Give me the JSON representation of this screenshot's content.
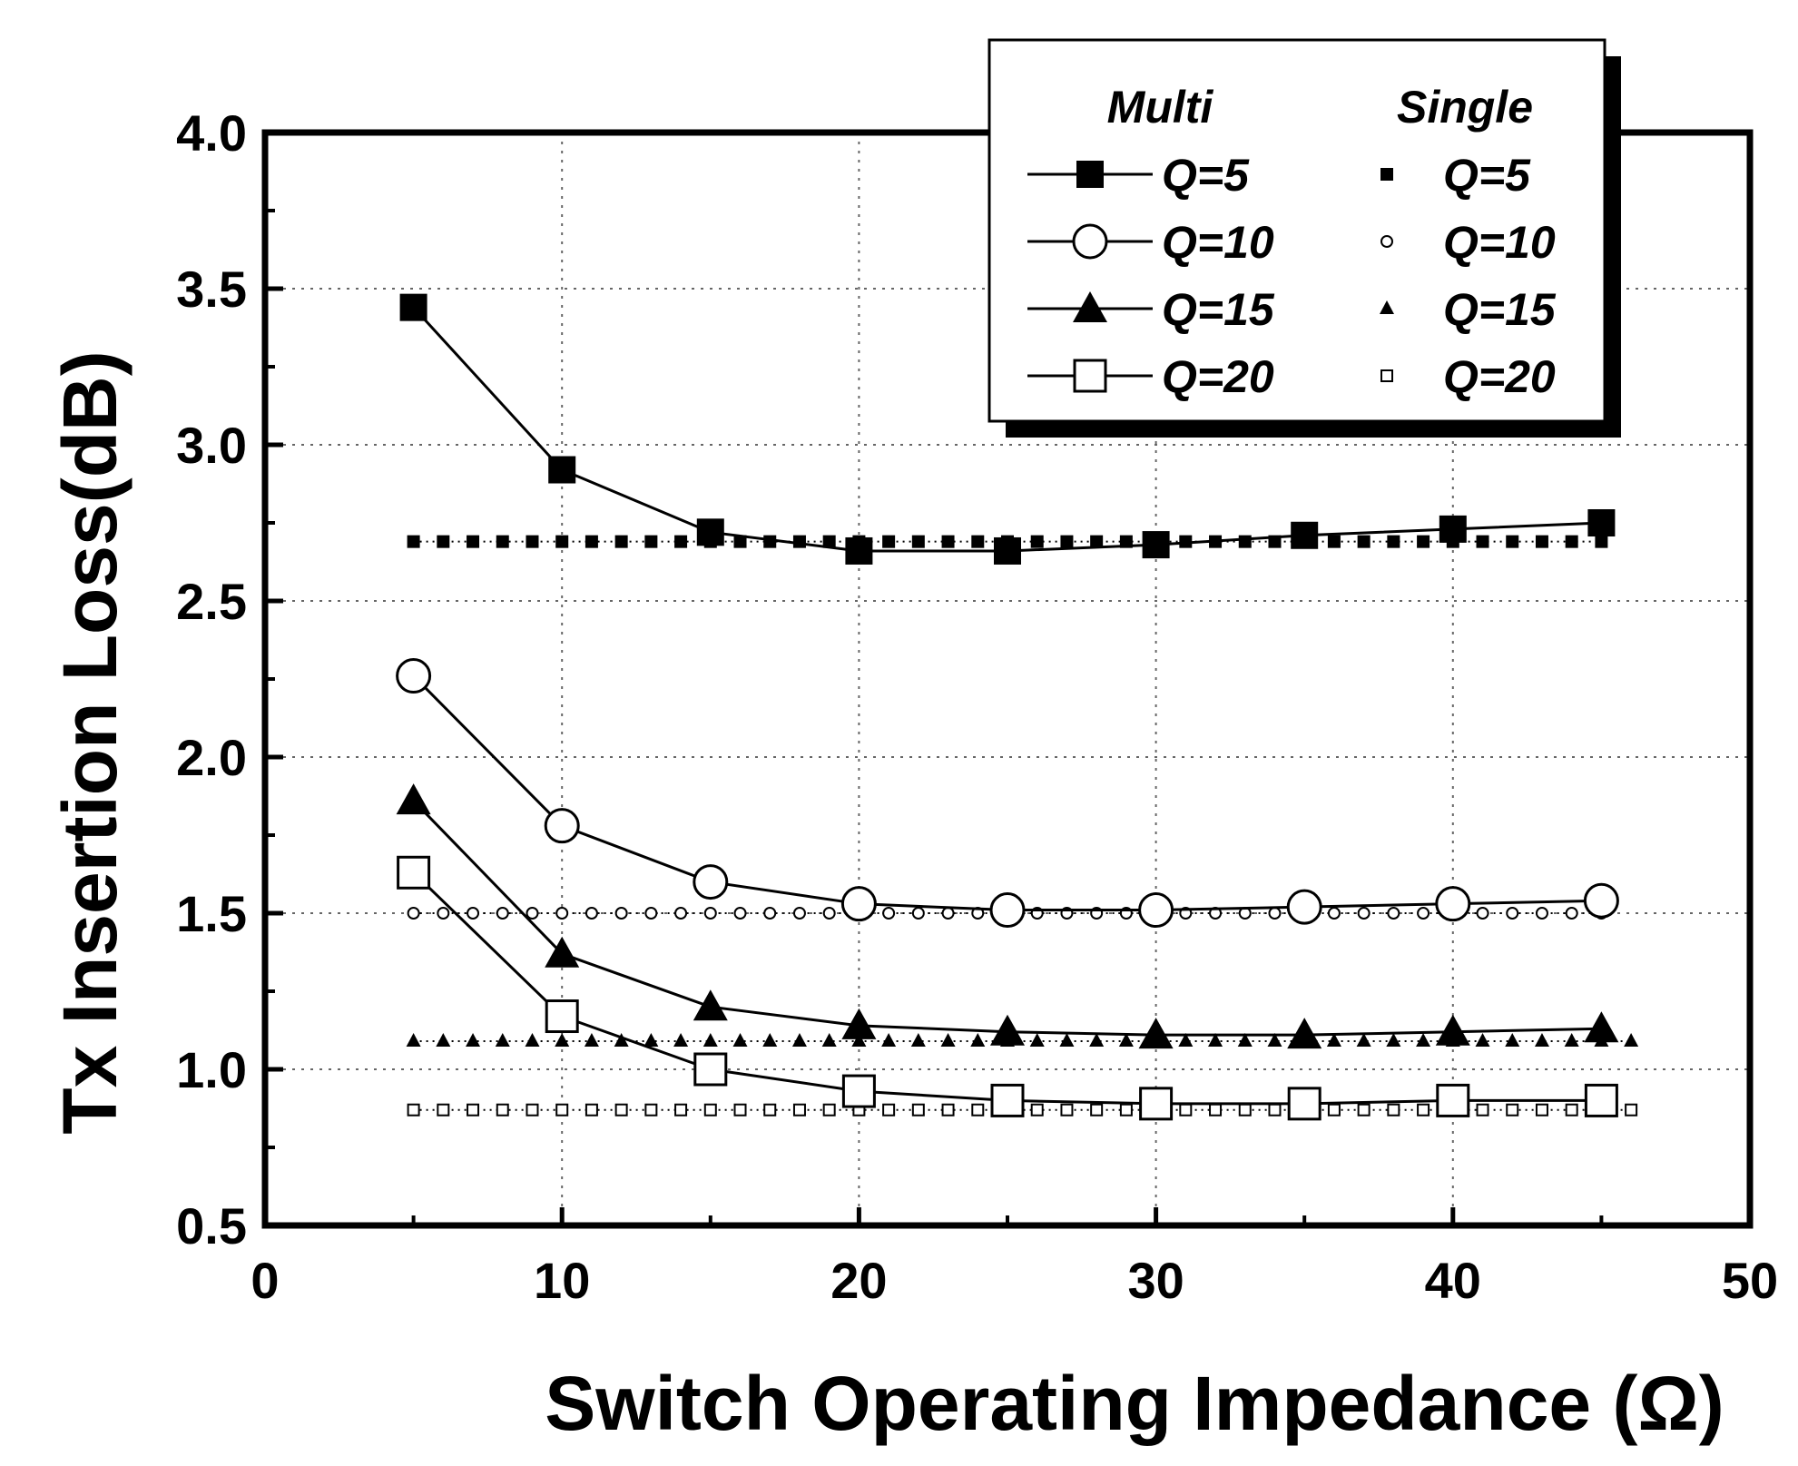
{
  "chart_data": {
    "type": "line",
    "title": "",
    "xlabel": "Switch Operating Impedance (Ω)",
    "ylabel": "Tx Insertion Loss(dB)",
    "xlim": [
      0,
      50
    ],
    "ylim": [
      0.5,
      4.0
    ],
    "x_ticks": [
      0,
      10,
      20,
      30,
      40,
      50
    ],
    "y_ticks": [
      0.5,
      1.0,
      1.5,
      2.0,
      2.5,
      3.0,
      3.5,
      4.0
    ],
    "x_tick_labels": [
      "0",
      "10",
      "20",
      "30",
      "40",
      "50"
    ],
    "y_tick_labels": [
      "0.5",
      "1.0",
      "1.5",
      "2.0",
      "2.5",
      "3.0",
      "3.5",
      "4.0"
    ],
    "grid": true,
    "legend": {
      "placement": "top-right",
      "multi_header": "Multi",
      "single_header": "Single",
      "multi_labels": [
        "Q=5",
        "Q=10",
        "Q=15",
        "Q=20"
      ],
      "single_labels": [
        "Q=5",
        "Q=10",
        "Q=15",
        "Q=20"
      ]
    },
    "x": [
      5,
      10,
      15,
      20,
      25,
      30,
      35,
      40,
      45
    ],
    "series": [
      {
        "name": "Multi Q=5",
        "group": "Multi",
        "marker": "square-filled",
        "values": [
          3.44,
          2.92,
          2.72,
          2.66,
          2.66,
          2.68,
          2.71,
          2.73,
          2.75
        ]
      },
      {
        "name": "Multi Q=10",
        "group": "Multi",
        "marker": "circle-open",
        "values": [
          2.26,
          1.78,
          1.6,
          1.53,
          1.51,
          1.51,
          1.52,
          1.53,
          1.54
        ]
      },
      {
        "name": "Multi Q=15",
        "group": "Multi",
        "marker": "triangle-filled",
        "values": [
          1.86,
          1.37,
          1.2,
          1.14,
          1.12,
          1.11,
          1.11,
          1.12,
          1.13
        ]
      },
      {
        "name": "Multi Q=20",
        "group": "Multi",
        "marker": "square-open",
        "values": [
          1.63,
          1.17,
          1.0,
          0.93,
          0.9,
          0.89,
          0.89,
          0.9,
          0.9
        ]
      },
      {
        "name": "Single Q=5",
        "group": "Single",
        "marker": "square-filled-small",
        "value": 2.69,
        "x_range": [
          5,
          45
        ]
      },
      {
        "name": "Single Q=10",
        "group": "Single",
        "marker": "circle-open-small",
        "value": 1.5,
        "x_range": [
          5,
          45
        ]
      },
      {
        "name": "Single Q=15",
        "group": "Single",
        "marker": "triangle-filled-small",
        "value": 1.09,
        "x_range": [
          5,
          46
        ]
      },
      {
        "name": "Single Q=20",
        "group": "Single",
        "marker": "square-open-small",
        "value": 0.87,
        "x_range": [
          5,
          46
        ]
      }
    ]
  }
}
